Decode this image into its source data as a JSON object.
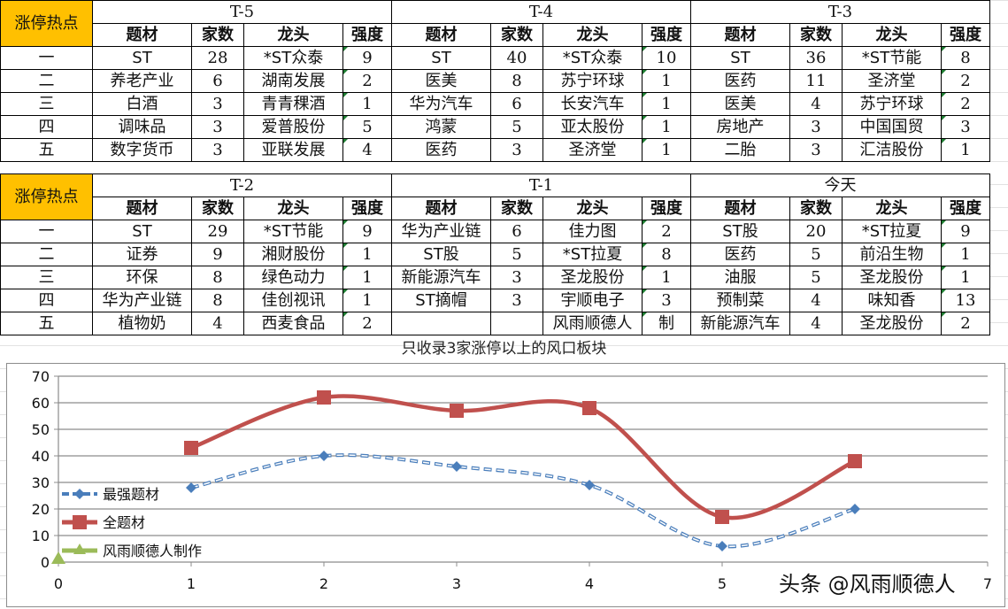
{
  "sheet": {
    "hot_label": "涨停热点",
    "column_headers": [
      "题材",
      "家数",
      "龙头",
      "强度"
    ],
    "ranks": [
      "一",
      "二",
      "三",
      "四",
      "五"
    ]
  },
  "blocks": [
    {
      "period": "T-5",
      "rows": [
        {
          "topic": "ST",
          "count": "28",
          "leader": "*ST众泰",
          "strength": "9"
        },
        {
          "topic": "养老产业",
          "count": "6",
          "leader": "湖南发展",
          "strength": "2"
        },
        {
          "topic": "白酒",
          "count": "3",
          "leader": "青青稞酒",
          "strength": "1"
        },
        {
          "topic": "调味品",
          "count": "3",
          "leader": "爱普股份",
          "strength": "5"
        },
        {
          "topic": "数字货币",
          "count": "3",
          "leader": "亚联发展",
          "strength": "4"
        }
      ]
    },
    {
      "period": "T-4",
      "rows": [
        {
          "topic": "ST",
          "count": "40",
          "leader": "*ST众泰",
          "strength": "10"
        },
        {
          "topic": "医美",
          "count": "8",
          "leader": "苏宁环球",
          "strength": "1"
        },
        {
          "topic": "华为汽车",
          "count": "6",
          "leader": "长安汽车",
          "strength": "1"
        },
        {
          "topic": "鸿蒙",
          "count": "5",
          "leader": "亚太股份",
          "strength": "1"
        },
        {
          "topic": "医药",
          "count": "3",
          "leader": "圣济堂",
          "strength": "1"
        }
      ]
    },
    {
      "period": "T-3",
      "rows": [
        {
          "topic": "ST",
          "count": "36",
          "leader": "*ST节能",
          "strength": "8"
        },
        {
          "topic": "医药",
          "count": "11",
          "leader": "圣济堂",
          "strength": "2"
        },
        {
          "topic": "医美",
          "count": "4",
          "leader": "苏宁环球",
          "strength": "2"
        },
        {
          "topic": "房地产",
          "count": "3",
          "leader": "中国国贸",
          "strength": "3"
        },
        {
          "topic": "二胎",
          "count": "3",
          "leader": "汇洁股份",
          "strength": "1"
        }
      ]
    },
    {
      "period": "T-2",
      "rows": [
        {
          "topic": "ST",
          "count": "29",
          "leader": "*ST节能",
          "strength": "9"
        },
        {
          "topic": "证券",
          "count": "9",
          "leader": "湘财股份",
          "strength": "1"
        },
        {
          "topic": "环保",
          "count": "8",
          "leader": "绿色动力",
          "strength": "1"
        },
        {
          "topic": "华为产业链",
          "count": "8",
          "leader": "佳创视讯",
          "strength": "1"
        },
        {
          "topic": "植物奶",
          "count": "4",
          "leader": "西麦食品",
          "strength": "2"
        }
      ]
    },
    {
      "period": "T-1",
      "rows": [
        {
          "topic": "华为产业链",
          "count": "6",
          "leader": "佳力图",
          "strength": "2"
        },
        {
          "topic": "ST股",
          "count": "5",
          "leader": "*ST拉夏",
          "strength": "8"
        },
        {
          "topic": "新能源汽车",
          "count": "3",
          "leader": "圣龙股份",
          "strength": "1"
        },
        {
          "topic": "ST摘帽",
          "count": "3",
          "leader": "宇顺电子",
          "strength": "3"
        },
        {
          "topic": "",
          "count": "",
          "leader": "风雨顺德人",
          "strength": "制"
        }
      ]
    },
    {
      "period": "今天",
      "rows": [
        {
          "topic": "ST股",
          "count": "20",
          "leader": "*ST拉夏",
          "strength": "9"
        },
        {
          "topic": "医药",
          "count": "5",
          "leader": "前沿生物",
          "strength": "1"
        },
        {
          "topic": "油服",
          "count": "5",
          "leader": "圣龙股份",
          "strength": "1"
        },
        {
          "topic": "预制菜",
          "count": "4",
          "leader": "味知香",
          "strength": "13"
        },
        {
          "topic": "新能源汽车",
          "count": "4",
          "leader": "圣龙股份",
          "strength": "2"
        }
      ]
    }
  ],
  "chart_data": {
    "type": "line",
    "title": "只收录3家涨停以上的风口板块",
    "xlabel": "",
    "ylabel": "",
    "xlim": [
      0,
      7
    ],
    "ylim": [
      0,
      70
    ],
    "x_ticks": [
      "0",
      "1",
      "2",
      "3",
      "4",
      "5",
      "7"
    ],
    "y_ticks": [
      "0",
      "10",
      "20",
      "30",
      "40",
      "50",
      "60",
      "70"
    ],
    "grid": true,
    "legend_position": "inside-left",
    "series": [
      {
        "name": "最强题材",
        "color": "#4a7ebb",
        "style": "dashed-smooth",
        "marker": "diamond",
        "x": [
          1,
          2,
          3,
          4,
          5,
          6
        ],
        "values": [
          28,
          40,
          36,
          29,
          6,
          20
        ]
      },
      {
        "name": "全题材",
        "color": "#c0504d",
        "style": "solid-smooth",
        "marker": "square",
        "x": [
          1,
          2,
          3,
          4,
          5,
          6
        ],
        "values": [
          43,
          62,
          57,
          58,
          17,
          38
        ]
      },
      {
        "name": "风雨顺德人制作",
        "color": "#9bbb59",
        "style": "solid",
        "marker": "triangle",
        "x": [
          0
        ],
        "values": [
          1
        ]
      }
    ]
  },
  "watermark": "头条 @风雨顺德人"
}
